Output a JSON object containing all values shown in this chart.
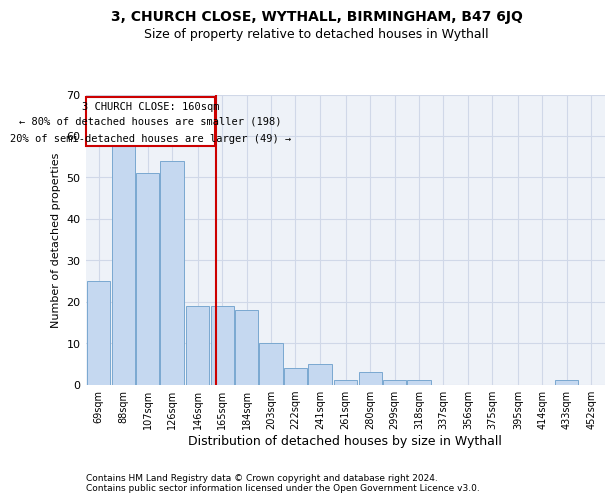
{
  "title1": "3, CHURCH CLOSE, WYTHALL, BIRMINGHAM, B47 6JQ",
  "title2": "Size of property relative to detached houses in Wythall",
  "xlabel": "Distribution of detached houses by size in Wythall",
  "ylabel": "Number of detached properties",
  "footnote1": "Contains HM Land Registry data © Crown copyright and database right 2024.",
  "footnote2": "Contains public sector information licensed under the Open Government Licence v3.0.",
  "annotation_line1": "3 CHURCH CLOSE: 160sqm",
  "annotation_line2": "← 80% of detached houses are smaller (198)",
  "annotation_line3": "20% of semi-detached houses are larger (49) →",
  "property_size": 160,
  "bar_centers": [
    69,
    88,
    107,
    126,
    146,
    165,
    184,
    203,
    222,
    241,
    261,
    280,
    299,
    318,
    337,
    356,
    375,
    395,
    414,
    433,
    452
  ],
  "bar_values": [
    25,
    59,
    51,
    54,
    19,
    19,
    18,
    10,
    4,
    5,
    1,
    3,
    1,
    1,
    0,
    0,
    0,
    0,
    0,
    1,
    0
  ],
  "bar_width": 18.5,
  "bar_color": "#c5d8f0",
  "bar_edge_color": "#7aa8d0",
  "vline_x": 160,
  "vline_color": "#cc0000",
  "annotation_box_color": "#cc0000",
  "ylim": [
    0,
    70
  ],
  "yticks": [
    0,
    10,
    20,
    30,
    40,
    50,
    60,
    70
  ],
  "grid_color": "#d0d8e8",
  "bg_color": "#eef2f8",
  "fig_bg_color": "#ffffff"
}
